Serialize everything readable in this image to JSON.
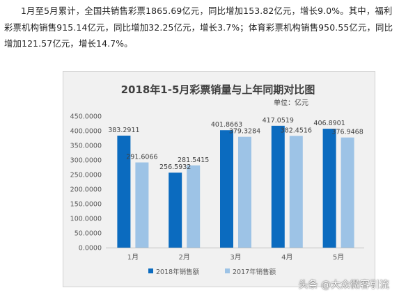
{
  "article": {
    "text": "1月至5月累计，全国共销售彩票1865.69亿元，同比增加153.82亿元，增长9.0%。其中，福利彩票机构销售915.14亿元，同比增加32.25亿元，增长3.7%；体育彩票机构销售950.55亿元，同比增加121.57亿元，增长14.7%。"
  },
  "chart_data": {
    "type": "bar",
    "title": "2018年1-5月彩票销量与上年同期对比图",
    "unit_label": "单位：亿元",
    "categories": [
      "1月",
      "2月",
      "3月",
      "4月",
      "5月"
    ],
    "series": [
      {
        "name": "2018年销售额",
        "color": "#0b6bbf",
        "values": [
          383.2911,
          256.5932,
          401.8663,
          417.0519,
          406.8901
        ]
      },
      {
        "name": "2017年销售额",
        "color": "#9dc3e6",
        "values": [
          291.6066,
          281.5415,
          379.3284,
          382.4516,
          376.9468
        ]
      }
    ],
    "ylim": [
      0,
      450
    ],
    "y_ticks": [
      "0.0000",
      "50.0000",
      "100.0000",
      "150.0000",
      "200.0000",
      "250.0000",
      "300.0000",
      "350.0000",
      "400.0000",
      "450.0000"
    ],
    "data_labels": [
      [
        "383.2911",
        "256.5932",
        "401.8663",
        "417.0519",
        "406.8901"
      ],
      [
        "291.6066",
        "281.5415",
        "379.3284",
        "382.4516",
        "376.9468"
      ]
    ],
    "legend_position": "bottom",
    "grid": false
  },
  "watermark": {
    "text": "头条 @大众微客引流"
  }
}
